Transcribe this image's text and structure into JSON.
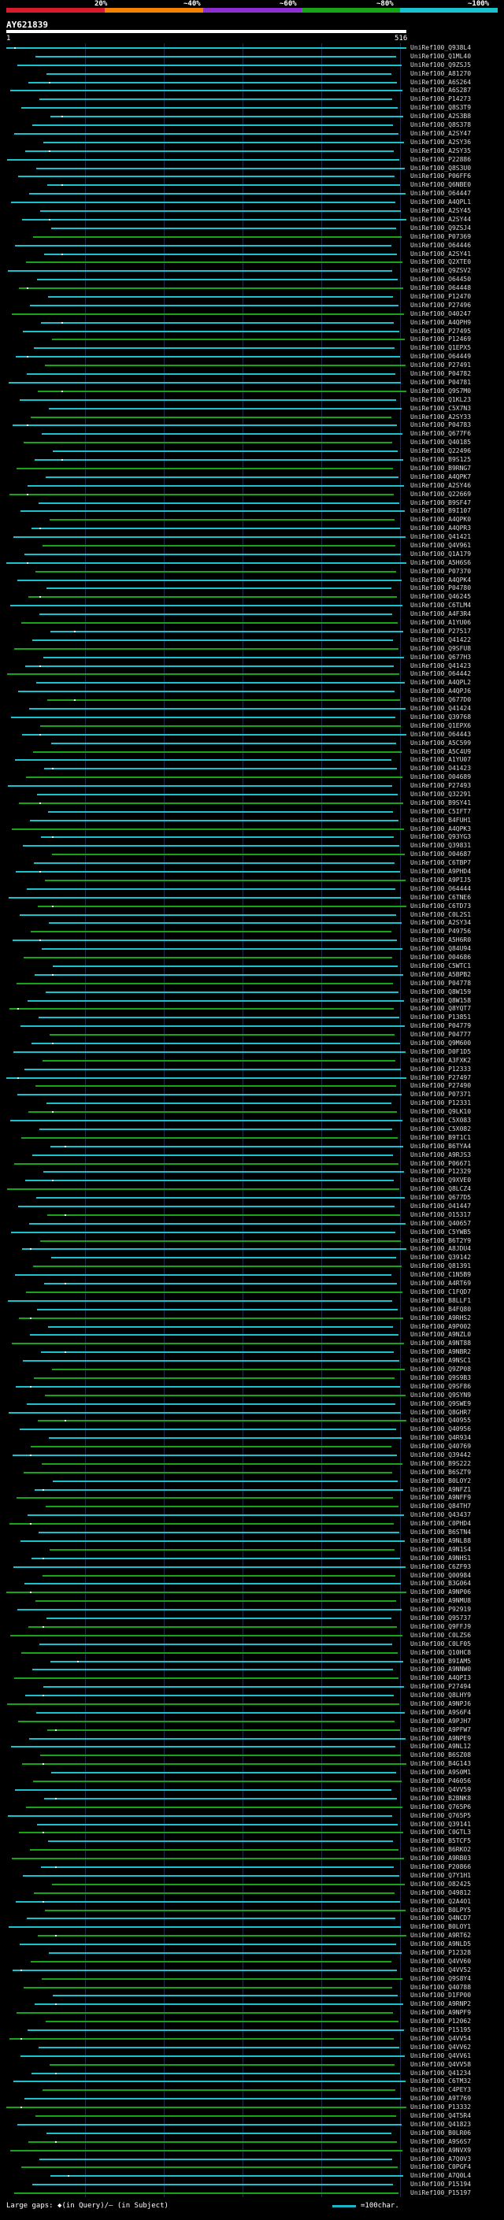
{
  "title": "AY621839",
  "legend": {
    "labels": [
      "20%",
      "~40%",
      "~60%",
      "~80%",
      "~100%"
    ],
    "colors": [
      "#d81b2d",
      "#f18300",
      "#8c2ed0",
      "#16a516",
      "#18c3cf"
    ]
  },
  "ruler": {
    "start": "1",
    "end": "516"
  },
  "footer": {
    "left": "Large gaps: ◆(in Query)/– (in Subject)",
    "right": "=100char."
  },
  "hits": [
    {
      "label": "UniRef100_Q938L4"
    },
    {
      "label": "UniRef100_Q1ML40"
    },
    {
      "label": "UniRef100_Q9ZSJ5"
    },
    {
      "label": "UniRef100_A81270"
    },
    {
      "label": "UniRef100_A6S264"
    },
    {
      "label": "UniRef100_A6S287"
    },
    {
      "label": "UniRef100_P14273"
    },
    {
      "label": "UniRef100_Q8S3T9"
    },
    {
      "label": "UniRef100_A2S3B8"
    },
    {
      "label": "UniRef100_Q8S378"
    },
    {
      "label": "UniRef100_A2SY47"
    },
    {
      "label": "UniRef100_A2SY36"
    },
    {
      "label": "UniRef100_A2SY35"
    },
    {
      "label": "UniRef100_P22886"
    },
    {
      "label": "UniRef100_Q8S3U0"
    },
    {
      "label": "UniRef100_P06FF6"
    },
    {
      "label": "UniRef100_Q6NBE0"
    },
    {
      "label": "UniRef100_O64447"
    },
    {
      "label": "UniRef100_A4QPL1"
    },
    {
      "label": "UniRef100_A2SY45"
    },
    {
      "label": "UniRef100_A2SY44"
    },
    {
      "label": "UniRef100_Q9ZSJ4"
    },
    {
      "label": "UniRef100_P07369"
    },
    {
      "label": "UniRef100_O64446"
    },
    {
      "label": "UniRef100_A2SY41"
    },
    {
      "label": "UniRef100_Q2XTE0"
    },
    {
      "label": "UniRef100_Q9ZSV2"
    },
    {
      "label": "UniRef100_O64450"
    },
    {
      "label": "UniRef100_O64448"
    },
    {
      "label": "UniRef100_P12470"
    },
    {
      "label": "UniRef100_P27496"
    },
    {
      "label": "UniRef100_O40247"
    },
    {
      "label": "UniRef100_A4QPH9"
    },
    {
      "label": "UniRef100_P27495"
    },
    {
      "label": "UniRef100_P12469"
    },
    {
      "label": "UniRef100_Q1EPX5"
    },
    {
      "label": "UniRef100_O64449"
    },
    {
      "label": "UniRef100_P27491"
    },
    {
      "label": "UniRef100_P04782"
    },
    {
      "label": "UniRef100_P04781"
    },
    {
      "label": "UniRef100_Q9S7M0"
    },
    {
      "label": "UniRef100_Q1KL23"
    },
    {
      "label": "UniRef100_C5X7N3"
    },
    {
      "label": "UniRef100_A2SY33"
    },
    {
      "label": "UniRef100_P04783"
    },
    {
      "label": "UniRef100_Q677F6"
    },
    {
      "label": "UniRef100_Q40185"
    },
    {
      "label": "UniRef100_Q22496"
    },
    {
      "label": "UniRef100_B9S125"
    },
    {
      "label": "UniRef100_B9RNG7"
    },
    {
      "label": "UniRef100_A4QPK7"
    },
    {
      "label": "UniRef100_A2SY46"
    },
    {
      "label": "UniRef100_Q22669"
    },
    {
      "label": "UniRef100_B9SF47"
    },
    {
      "label": "UniRef100_B9I107"
    },
    {
      "label": "UniRef100_A4QPK0"
    },
    {
      "label": "UniRef100_A4QPR3"
    },
    {
      "label": "UniRef100_Q41421"
    },
    {
      "label": "UniRef100_Q4V961"
    },
    {
      "label": "UniRef100_Q1A179"
    },
    {
      "label": "UniRef100_A5H6S6"
    },
    {
      "label": "UniRef100_P07370"
    },
    {
      "label": "UniRef100_A4QPK4"
    },
    {
      "label": "UniRef100_P04780"
    },
    {
      "label": "UniRef100_Q46245"
    },
    {
      "label": "UniRef100_C6TLM4"
    },
    {
      "label": "UniRef100_A4F3R4"
    },
    {
      "label": "UniRef100_A1YU06"
    },
    {
      "label": "UniRef100_P27517"
    },
    {
      "label": "UniRef100_Q41422"
    },
    {
      "label": "UniRef100_Q9SFU8"
    },
    {
      "label": "UniRef100_Q677H3"
    },
    {
      "label": "UniRef100_Q41423"
    },
    {
      "label": "UniRef100_O64442"
    },
    {
      "label": "UniRef100_A4QPL2"
    },
    {
      "label": "UniRef100_A4QPJ6"
    },
    {
      "label": "UniRef100_Q677D0"
    },
    {
      "label": "UniRef100_Q41424"
    },
    {
      "label": "UniRef100_Q39768"
    },
    {
      "label": "UniRef100_Q1EPX6"
    },
    {
      "label": "UniRef100_O64443"
    },
    {
      "label": "UniRef100_A5C599"
    },
    {
      "label": "UniRef100_A5C4U9"
    },
    {
      "label": "UniRef100_A1YU07"
    },
    {
      "label": "UniRef100_O41423"
    },
    {
      "label": "UniRef100_O04689"
    },
    {
      "label": "UniRef100_P27493"
    },
    {
      "label": "UniRef100_Q32291"
    },
    {
      "label": "UniRef100_B9SY41"
    },
    {
      "label": "UniRef100_C5IFT7"
    },
    {
      "label": "UniRef100_B4FUH1"
    },
    {
      "label": "UniRef100_A4QPK3"
    },
    {
      "label": "UniRef100_Q93YG3"
    },
    {
      "label": "UniRef100_Q39831"
    },
    {
      "label": "UniRef100_O04687"
    },
    {
      "label": "UniRef100_C6TBP7"
    },
    {
      "label": "UniRef100_A9PHD4"
    },
    {
      "label": "UniRef100_A9PIJ5"
    },
    {
      "label": "UniRef100_O64444"
    },
    {
      "label": "UniRef100_C6TNE6"
    },
    {
      "label": "UniRef100_C6TD73"
    },
    {
      "label": "UniRef100_C0L2S1"
    },
    {
      "label": "UniRef100_A2SY34"
    },
    {
      "label": "UniRef100_P49756"
    },
    {
      "label": "UniRef100_A5H6R0"
    },
    {
      "label": "UniRef100_Q84U94"
    },
    {
      "label": "UniRef100_O04686"
    },
    {
      "label": "UniRef100_C5WTC1"
    },
    {
      "label": "UniRef100_A5BPB2"
    },
    {
      "label": "UniRef100_P04778"
    },
    {
      "label": "UniRef100_Q8W159"
    },
    {
      "label": "UniRef100_Q8W158"
    },
    {
      "label": "UniRef100_Q8YQT7"
    },
    {
      "label": "UniRef100_P13851"
    },
    {
      "label": "UniRef100_P04779"
    },
    {
      "label": "UniRef100_P04777"
    },
    {
      "label": "UniRef100_Q9M600"
    },
    {
      "label": "UniRef100_D0F1D5"
    },
    {
      "label": "UniRef100_A3FXK2"
    },
    {
      "label": "UniRef100_P12333"
    },
    {
      "label": "UniRef100_P27497"
    },
    {
      "label": "UniRef100_P27490"
    },
    {
      "label": "UniRef100_P07371"
    },
    {
      "label": "UniRef100_P12331"
    },
    {
      "label": "UniRef100_Q9LK10"
    },
    {
      "label": "UniRef100_C5X083"
    },
    {
      "label": "UniRef100_C5X082"
    },
    {
      "label": "UniRef100_B9T1C1"
    },
    {
      "label": "UniRef100_B6TYA4"
    },
    {
      "label": "UniRef100_A9RJS3"
    },
    {
      "label": "UniRef100_P06671"
    },
    {
      "label": "UniRef100_P12329"
    },
    {
      "label": "UniRef100_Q9XVE0"
    },
    {
      "label": "UniRef100_Q8LCZ4"
    },
    {
      "label": "UniRef100_Q677D5"
    },
    {
      "label": "UniRef100_O41447"
    },
    {
      "label": "UniRef100_O15317"
    },
    {
      "label": "UniRef100_Q40657"
    },
    {
      "label": "UniRef100_C5YWB5"
    },
    {
      "label": "UniRef100_B6T2Y9"
    },
    {
      "label": "UniRef100_A8JDU4"
    },
    {
      "label": "UniRef100_Q39142"
    },
    {
      "label": "UniRef100_Q81391"
    },
    {
      "label": "UniRef100_C1N5B9"
    },
    {
      "label": "UniRef100_A4RT69"
    },
    {
      "label": "UniRef100_C1FQD7"
    },
    {
      "label": "UniRef100_B8LLF1"
    },
    {
      "label": "UniRef100_B4FQ80"
    },
    {
      "label": "UniRef100_A9RHS2"
    },
    {
      "label": "UniRef100_A9P002"
    },
    {
      "label": "UniRef100_A9NZL0"
    },
    {
      "label": "UniRef100_A9NT88"
    },
    {
      "label": "UniRef100_A9NBR2"
    },
    {
      "label": "UniRef100_A9NSC1"
    },
    {
      "label": "UniRef100_Q9ZP08"
    },
    {
      "label": "UniRef100_Q9S9B3"
    },
    {
      "label": "UniRef100_Q9SF86"
    },
    {
      "label": "UniRef100_Q9SYN9"
    },
    {
      "label": "UniRef100_Q9SWE9"
    },
    {
      "label": "UniRef100_Q8GHR7"
    },
    {
      "label": "UniRef100_Q40955"
    },
    {
      "label": "UniRef100_Q40956"
    },
    {
      "label": "UniRef100_Q4R934"
    },
    {
      "label": "UniRef100_Q40769"
    },
    {
      "label": "UniRef100_Q39442"
    },
    {
      "label": "UniRef100_B9S222"
    },
    {
      "label": "UniRef100_B6SZT9"
    },
    {
      "label": "UniRef100_B0LOY2"
    },
    {
      "label": "UniRef100_A9NFZ1"
    },
    {
      "label": "UniRef100_A9NFF9"
    },
    {
      "label": "UniRef100_Q84TH7"
    },
    {
      "label": "UniRef100_Q43437"
    },
    {
      "label": "UniRef100_C0PHD4"
    },
    {
      "label": "UniRef100_B6STN4"
    },
    {
      "label": "UniRef100_A9NL88"
    },
    {
      "label": "UniRef100_A9N1S4"
    },
    {
      "label": "UniRef100_A9NHS1"
    },
    {
      "label": "UniRef100_C6ZF93"
    },
    {
      "label": "UniRef100_Q00984"
    },
    {
      "label": "UniRef100_B3G064"
    },
    {
      "label": "UniRef100_A9NP06"
    },
    {
      "label": "UniRef100_A9NMU8"
    },
    {
      "label": "UniRef100_P92919"
    },
    {
      "label": "UniRef100_Q95737"
    },
    {
      "label": "UniRef100_Q9FFJ9"
    },
    {
      "label": "UniRef100_C0LZS6"
    },
    {
      "label": "UniRef100_C0LF05"
    },
    {
      "label": "UniRef100_Q10HC8"
    },
    {
      "label": "UniRef100_B9IAM5"
    },
    {
      "label": "UniRef100_A9NNW0"
    },
    {
      "label": "UniRef100_A4QPI3"
    },
    {
      "label": "UniRef100_P27494"
    },
    {
      "label": "UniRef100_Q8LHY9"
    },
    {
      "label": "UniRef100_A9NPJ6"
    },
    {
      "label": "UniRef100_A9S6F4"
    },
    {
      "label": "UniRef100_A9PJH7"
    },
    {
      "label": "UniRef100_A9PFW7"
    },
    {
      "label": "UniRef100_A9NPE9"
    },
    {
      "label": "UniRef100_A9NL12"
    },
    {
      "label": "UniRef100_B6SZ08"
    },
    {
      "label": "UniRef100_B4G143"
    },
    {
      "label": "UniRef100_A9S0M1"
    },
    {
      "label": "UniRef100_P46056"
    },
    {
      "label": "UniRef100_Q4VV59"
    },
    {
      "label": "UniRef100_B2BNK8"
    },
    {
      "label": "UniRef100_Q765P6"
    },
    {
      "label": "UniRef100_Q765P5"
    },
    {
      "label": "UniRef100_Q39141"
    },
    {
      "label": "UniRef100_C0GTL3"
    },
    {
      "label": "UniRef100_B5TCF5"
    },
    {
      "label": "UniRef100_B6RKO2"
    },
    {
      "label": "UniRef100_A9RB03"
    },
    {
      "label": "UniRef100_P20866"
    },
    {
      "label": "UniRef100_Q7Y1H1"
    },
    {
      "label": "UniRef100_O82425"
    },
    {
      "label": "UniRef100_O49812"
    },
    {
      "label": "UniRef100_Q2A4O1"
    },
    {
      "label": "UniRef100_B0LPY5"
    },
    {
      "label": "UniRef100_Q4NCD7"
    },
    {
      "label": "UniRef100_B0LOY1"
    },
    {
      "label": "UniRef100_A9RT62"
    },
    {
      "label": "UniRef100_A9NLD5"
    },
    {
      "label": "UniRef100_P12328"
    },
    {
      "label": "UniRef100_Q4VV60"
    },
    {
      "label": "UniRef100_Q4VV52"
    },
    {
      "label": "UniRef100_Q9S8Y4"
    },
    {
      "label": "UniRef100_Q40788"
    },
    {
      "label": "UniRef100_D1FP00"
    },
    {
      "label": "UniRef100_A9RNP2"
    },
    {
      "label": "UniRef100_A9NPF9"
    },
    {
      "label": "UniRef100_P12062"
    },
    {
      "label": "UniRef100_P15195"
    },
    {
      "label": "UniRef100_Q4VV54"
    },
    {
      "label": "UniRef100_Q4VV62"
    },
    {
      "label": "UniRef100_Q4VV61"
    },
    {
      "label": "UniRef100_Q4VV58"
    },
    {
      "label": "UniRef100_Q41234"
    },
    {
      "label": "UniRef100_C6TM32"
    },
    {
      "label": "UniRef100_C4PEY3"
    },
    {
      "label": "UniRef100_A9T769"
    },
    {
      "label": "UniRef100_P13332"
    },
    {
      "label": "UniRef100_Q4T5R4"
    },
    {
      "label": "UniRef100_Q41823"
    },
    {
      "label": "UniRef100_B0LR06"
    },
    {
      "label": "UniRef100_A9S6S7"
    },
    {
      "label": "UniRef100_A9NVX9"
    },
    {
      "label": "UniRef100_A7Q0V3"
    },
    {
      "label": "UniRef100_C0PGF4"
    },
    {
      "label": "UniRef100_A7Q0L4"
    },
    {
      "label": "UniRef100_P15194"
    },
    {
      "label": "UniRef100_P15197"
    }
  ]
}
